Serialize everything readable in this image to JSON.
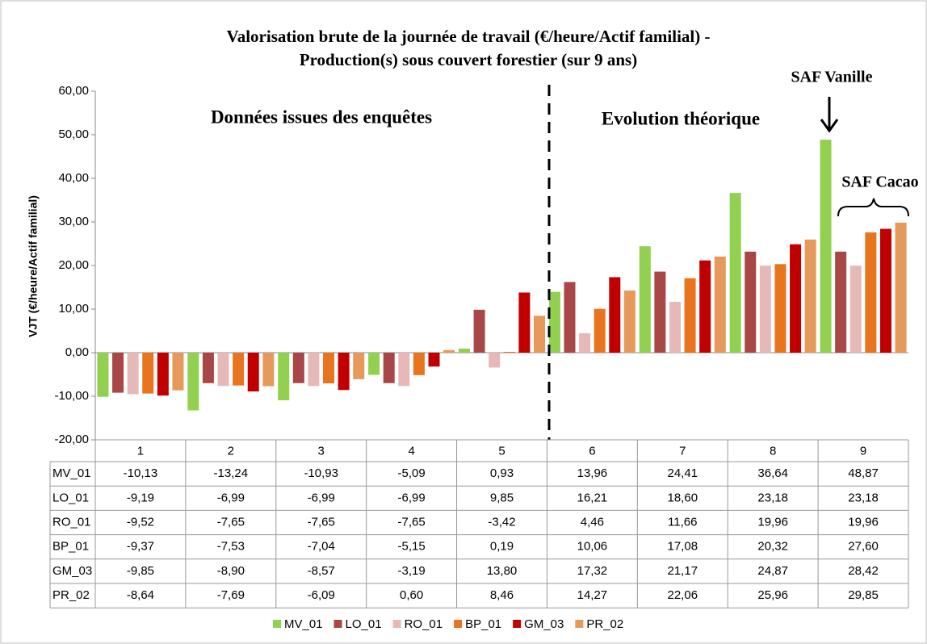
{
  "chart_data": {
    "type": "bar",
    "title": [
      "Valorisation  brute de la journée de travail (€/heure/Actif familial)  -",
      "Production(s) sous couvert forestier (sur 9 ans)"
    ],
    "y_label": "VJT (€/heure/Actif familial)",
    "annotations": [
      "Données issues des enquêtes",
      "Evolution théorique",
      "SAF Vanille",
      "SAF Cacao"
    ],
    "categories": [
      "1",
      "2",
      "3",
      "4",
      "5",
      "6",
      "7",
      "8",
      "9"
    ],
    "ylim": [
      -20,
      60
    ],
    "yticks": [
      {
        "value": -20,
        "label": "-20,00"
      },
      {
        "value": -10,
        "label": "-10,00"
      },
      {
        "value": 0,
        "label": "0,00"
      },
      {
        "value": 10,
        "label": "10,00"
      },
      {
        "value": 20,
        "label": "20,00"
      },
      {
        "value": 30,
        "label": "30,00"
      },
      {
        "value": 40,
        "label": "40,00"
      },
      {
        "value": 50,
        "label": "50,00"
      },
      {
        "value": 60,
        "label": "60,00"
      }
    ],
    "series": [
      {
        "name": "MV_01",
        "color": "#92d050",
        "values": [
          -10.13,
          -13.24,
          -10.93,
          -5.09,
          0.93,
          13.96,
          24.41,
          36.64,
          48.87
        ],
        "value_labels": [
          "-10,13",
          "-13,24",
          "-10,93",
          "-5,09",
          "0,93",
          "13,96",
          "24,41",
          "36,64",
          "48,87"
        ]
      },
      {
        "name": "LO_01",
        "color": "#a94646",
        "values": [
          -9.19,
          -6.99,
          -6.99,
          -6.99,
          9.85,
          16.21,
          18.6,
          23.18,
          23.18
        ],
        "value_labels": [
          "-9,19",
          "-6,99",
          "-6,99",
          "-6,99",
          "9,85",
          "16,21",
          "18,60",
          "23,18",
          "23,18"
        ]
      },
      {
        "name": "RO_01",
        "color": "#e6b9b8",
        "values": [
          -9.52,
          -7.65,
          -7.65,
          -7.65,
          -3.42,
          4.46,
          11.66,
          19.96,
          19.96
        ],
        "value_labels": [
          "-9,52",
          "-7,65",
          "-7,65",
          "-7,65",
          "-3,42",
          "4,46",
          "11,66",
          "19,96",
          "19,96"
        ]
      },
      {
        "name": "BP_01",
        "color": "#e8741e",
        "values": [
          -9.37,
          -7.53,
          -7.04,
          -5.15,
          0.19,
          10.06,
          17.08,
          20.32,
          27.6
        ],
        "value_labels": [
          "-9,37",
          "-7,53",
          "-7,04",
          "-5,15",
          "0,19",
          "10,06",
          "17,08",
          "20,32",
          "27,60"
        ]
      },
      {
        "name": "GM_03",
        "color": "#c00000",
        "values": [
          -9.85,
          -8.9,
          -8.57,
          -3.19,
          13.8,
          17.32,
          21.17,
          24.87,
          28.42
        ],
        "value_labels": [
          "-9,85",
          "-8,90",
          "-8,57",
          "-3,19",
          "13,80",
          "17,32",
          "21,17",
          "24,87",
          "28,42"
        ]
      },
      {
        "name": "PR_02",
        "color": "#e59a5c",
        "values": [
          -8.64,
          -7.69,
          -6.09,
          0.6,
          8.46,
          14.27,
          22.06,
          25.96,
          29.85
        ],
        "value_labels": [
          "-8,64",
          "-7,69",
          "-6,09",
          "0,60",
          "8,46",
          "14,27",
          "22,06",
          "25,96",
          "29,85"
        ]
      }
    ]
  }
}
